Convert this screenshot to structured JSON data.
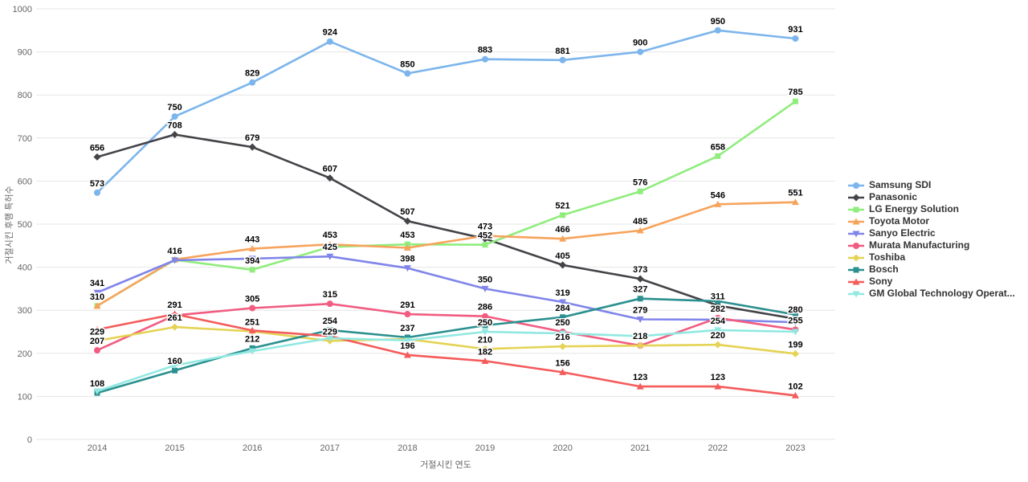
{
  "chart": {
    "title": "",
    "y_axis_title": "거절시킨 후행 특허수",
    "x_axis_title": "거절시킨 연도",
    "tick_labels": [
      "0",
      "100",
      "200",
      "300",
      "400",
      "500",
      "600",
      "700",
      "800",
      "900",
      "1000"
    ],
    "grid_color": "#e6e6e6",
    "tick_label_color": "#666666",
    "axis_title_color": "#666666",
    "data_label_color": "#000000",
    "legend_text_color": "#333333"
  },
  "legend": {
    "items": [
      {
        "label": "Samsung SDI"
      },
      {
        "label": "Panasonic"
      },
      {
        "label": "LG Energy Solution"
      },
      {
        "label": "Toyota Motor"
      },
      {
        "label": "Sanyo Electric"
      },
      {
        "label": "Murata Manufacturing"
      },
      {
        "label": "Toshiba"
      },
      {
        "label": "Bosch"
      },
      {
        "label": "Sony"
      },
      {
        "label": "GM Global Technology Operat..."
      }
    ]
  },
  "chart_data": {
    "type": "line",
    "x": [
      "2014",
      "2015",
      "2016",
      "2017",
      "2018",
      "2019",
      "2020",
      "2021",
      "2022",
      "2023"
    ],
    "xlabel": "거절시킨 연도",
    "ylabel": "거절시킨 후행 특허수",
    "ylim": [
      0,
      1000
    ],
    "y_tick_interval": 100,
    "grid": true,
    "legend_position": "right",
    "series": [
      {
        "name": "Samsung SDI",
        "color": "#7cb5ec",
        "marker": "circle",
        "values": [
          573,
          750,
          829,
          924,
          850,
          883,
          881,
          900,
          950,
          931
        ],
        "labels": [
          "573",
          "750",
          "829",
          "924",
          "850",
          "883",
          "881",
          "900",
          "950",
          "931"
        ]
      },
      {
        "name": "Panasonic",
        "color": "#434348",
        "marker": "diamond",
        "values": [
          656,
          708,
          679,
          607,
          507,
          466,
          405,
          373,
          311,
          280
        ],
        "labels": [
          "656",
          "708",
          "679",
          "607",
          "507",
          null,
          "405",
          "373",
          "311",
          "280"
        ]
      },
      {
        "name": "LG Energy Solution",
        "color": "#90ed7d",
        "marker": "square",
        "values": [
          310,
          417,
          394,
          447,
          453,
          452,
          521,
          576,
          658,
          785
        ],
        "labels": [
          "310",
          null,
          "394",
          null,
          "453",
          "452",
          "521",
          "576",
          "658",
          "785"
        ]
      },
      {
        "name": "Toyota Motor",
        "color": "#f7a35c",
        "marker": "triangle",
        "values": [
          310,
          418,
          443,
          453,
          445,
          473,
          466,
          485,
          546,
          551
        ],
        "labels": [
          null,
          null,
          "443",
          "453",
          null,
          "473",
          "466",
          "485",
          "546",
          "551"
        ]
      },
      {
        "name": "Sanyo Electric",
        "color": "#8085e9",
        "marker": "triangle-down",
        "values": [
          341,
          416,
          420,
          425,
          398,
          350,
          319,
          279,
          278,
          272
        ],
        "labels": [
          "341",
          "416",
          null,
          "425",
          "398",
          "350",
          "319",
          "279",
          null,
          null
        ]
      },
      {
        "name": "Murata Manufacturing",
        "color": "#f15c80",
        "marker": "circle",
        "values": [
          207,
          288,
          305,
          315,
          291,
          286,
          250,
          218,
          282,
          255
        ],
        "labels": [
          "207",
          null,
          "305",
          "315",
          "291",
          "286",
          "250",
          null,
          "282",
          "255"
        ]
      },
      {
        "name": "Toshiba",
        "color": "#e4d354",
        "marker": "diamond",
        "values": [
          229,
          261,
          251,
          229,
          233,
          210,
          216,
          218,
          220,
          199
        ],
        "labels": [
          "229",
          "261",
          "251",
          "229",
          null,
          "210",
          "216",
          "218",
          "220",
          "199"
        ]
      },
      {
        "name": "Bosch",
        "color": "#2b908f",
        "marker": "square",
        "values": [
          108,
          160,
          212,
          254,
          237,
          265,
          284,
          327,
          321,
          290
        ],
        "labels": [
          "108",
          "160",
          "212",
          "254",
          "237",
          null,
          "284",
          "327",
          null,
          null
        ]
      },
      {
        "name": "Sony",
        "color": "#f45b5b",
        "marker": "triangle",
        "values": [
          255,
          291,
          253,
          240,
          196,
          182,
          156,
          123,
          123,
          102
        ],
        "labels": [
          null,
          "291",
          null,
          null,
          "196",
          "182",
          "156",
          "123",
          "123",
          "102"
        ]
      },
      {
        "name": "GM Global Technology Operations",
        "color": "#91e8e1",
        "marker": "triangle-down",
        "values": [
          112,
          172,
          205,
          235,
          230,
          250,
          246,
          240,
          254,
          250
        ],
        "labels": [
          null,
          null,
          null,
          null,
          null,
          "250",
          null,
          null,
          "254",
          null
        ]
      }
    ]
  }
}
